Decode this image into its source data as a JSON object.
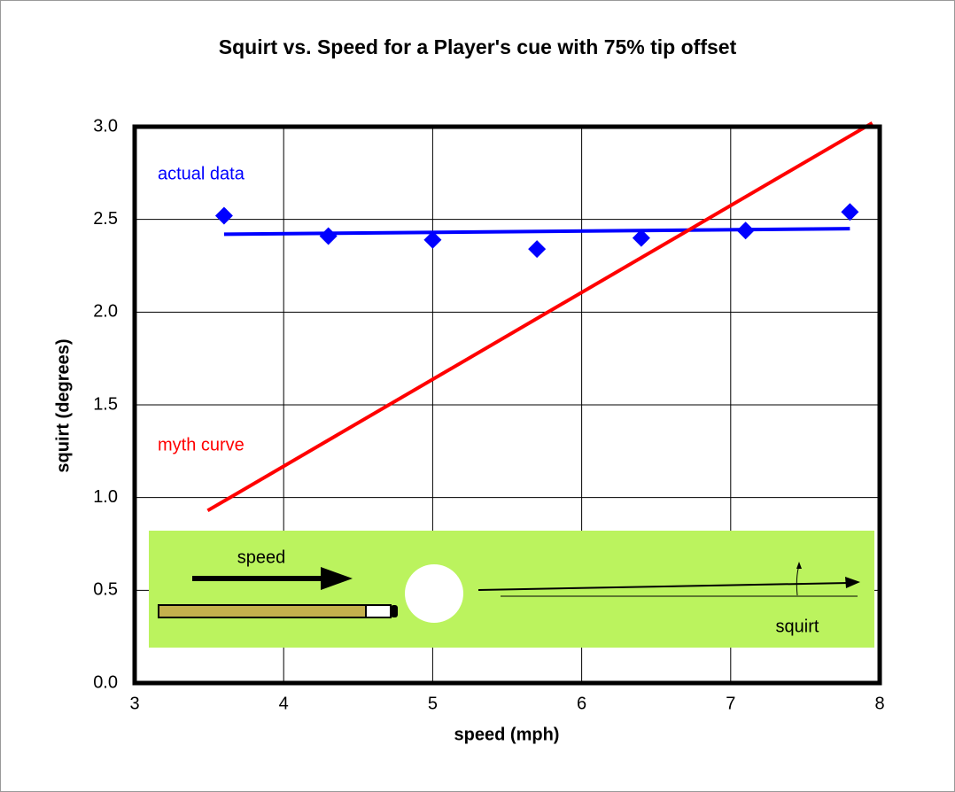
{
  "chart_data": {
    "type": "scatter",
    "title": "Squirt vs. Speed for a Player's cue with 75% tip offset",
    "x_label": "speed (mph)",
    "y_label": "squirt (degrees)",
    "xlim": [
      3,
      8
    ],
    "xticks": [
      3,
      4,
      5,
      6,
      7,
      8
    ],
    "ylim": [
      0,
      3
    ],
    "yticks": [
      {
        "value": 0,
        "label": "0.0"
      },
      0.5,
      {
        "value": 1,
        "label": "1.0"
      },
      1.5,
      {
        "value": 2,
        "label": "2.0"
      },
      2.5,
      {
        "value": 3,
        "label": "3.0"
      }
    ],
    "grid": true,
    "series": [
      {
        "type": "scatter",
        "color": "#0000ff",
        "x": [
          3.6,
          4.3,
          5.0,
          5.7,
          6.4,
          7.1,
          7.8
        ],
        "values": [
          2.52,
          2.41,
          2.39,
          2.34,
          2.4,
          2.44,
          2.54
        ]
      },
      {
        "type": "line",
        "color": "#0000ff",
        "x": [
          3.6,
          7.8
        ],
        "values": [
          2.42,
          2.45
        ]
      },
      {
        "type": "line",
        "color": "#ff0000",
        "x": [
          3.49,
          7.95
        ],
        "values": [
          0.93,
          3.02
        ]
      }
    ],
    "annotations": [
      "actual data",
      "myth curve",
      "speed",
      "squirt"
    ]
  }
}
